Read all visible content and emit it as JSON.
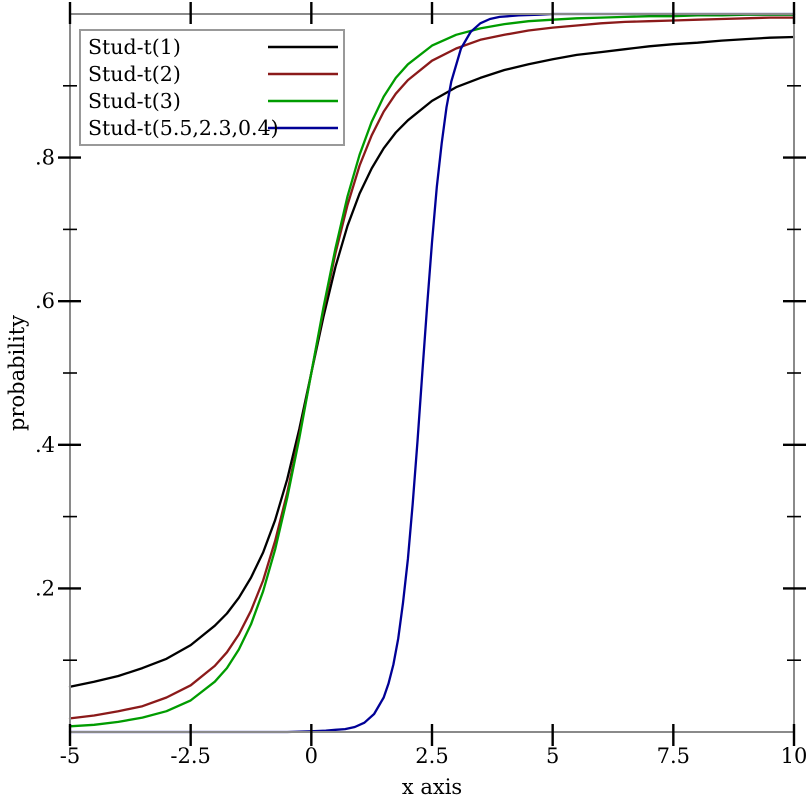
{
  "page": {
    "background": "#ffffff"
  },
  "axes": {
    "x": {
      "label": "x axis",
      "range": [
        -5,
        10
      ],
      "ticks": [
        -5,
        -2.5,
        0,
        2.5,
        5,
        7.5,
        10
      ],
      "tick_labels": [
        "-5",
        "-2.5",
        "0",
        "2.5",
        "5",
        "7.5",
        "10"
      ]
    },
    "y": {
      "label": "probability",
      "range": [
        0,
        1
      ],
      "major_ticks": [
        0.2,
        0.4,
        0.6,
        0.8
      ],
      "tick_labels": [
        ".2",
        ".4",
        ".6",
        ".8"
      ],
      "minor_ticks": [
        0.1,
        0.3,
        0.5,
        0.7,
        0.9
      ]
    }
  },
  "legend": {
    "position": "top-left",
    "entries": [
      "Stud-t(1)",
      "Stud-t(2)",
      "Stud-t(3)",
      "Stud-t(5.5,2.3,0.4)"
    ]
  },
  "colors": {
    "axis_frame": "#8a8a8a",
    "tick": "#000000",
    "text": "#000000",
    "legend_border": "#999999",
    "legend_background": "#ffffff",
    "series_black": "#000000",
    "series_red": "#8b1a1a",
    "series_green": "#009c00",
    "series_blue": "#000096"
  },
  "chart_data": {
    "type": "line",
    "title": "",
    "xlabel": "x axis",
    "ylabel": "probability",
    "xlim": [
      -5,
      10
    ],
    "ylim": [
      0,
      1
    ],
    "grid": false,
    "legend_position": "top-left",
    "x_ticks": [
      -5,
      -2.5,
      0,
      2.5,
      5,
      7.5,
      10
    ],
    "y_ticks": [
      0.2,
      0.4,
      0.6,
      0.8
    ],
    "series": [
      {
        "name": "Stud-t(1)",
        "color": "#000000",
        "points": [
          [
            -5,
            0.063
          ],
          [
            -4.5,
            0.07
          ],
          [
            -4,
            0.078
          ],
          [
            -3.5,
            0.089
          ],
          [
            -3,
            0.102
          ],
          [
            -2.5,
            0.121
          ],
          [
            -2,
            0.148
          ],
          [
            -1.75,
            0.165
          ],
          [
            -1.5,
            0.187
          ],
          [
            -1.25,
            0.215
          ],
          [
            -1,
            0.25
          ],
          [
            -0.75,
            0.295
          ],
          [
            -0.5,
            0.352
          ],
          [
            -0.25,
            0.422
          ],
          [
            0,
            0.5
          ],
          [
            0.25,
            0.578
          ],
          [
            0.5,
            0.648
          ],
          [
            0.75,
            0.705
          ],
          [
            1,
            0.75
          ],
          [
            1.25,
            0.785
          ],
          [
            1.5,
            0.813
          ],
          [
            1.75,
            0.835
          ],
          [
            2,
            0.852
          ],
          [
            2.5,
            0.879
          ],
          [
            3,
            0.898
          ],
          [
            3.5,
            0.911
          ],
          [
            4,
            0.922
          ],
          [
            4.5,
            0.93
          ],
          [
            5,
            0.937
          ],
          [
            5.5,
            0.943
          ],
          [
            6,
            0.947
          ],
          [
            6.5,
            0.951
          ],
          [
            7,
            0.955
          ],
          [
            7.5,
            0.958
          ],
          [
            8,
            0.96
          ],
          [
            8.5,
            0.963
          ],
          [
            9,
            0.965
          ],
          [
            9.5,
            0.967
          ],
          [
            10,
            0.968
          ]
        ]
      },
      {
        "name": "Stud-t(2)",
        "color": "#8b1a1a",
        "points": [
          [
            -5,
            0.019
          ],
          [
            -4.5,
            0.023
          ],
          [
            -4,
            0.029
          ],
          [
            -3.5,
            0.036
          ],
          [
            -3,
            0.048
          ],
          [
            -2.5,
            0.065
          ],
          [
            -2,
            0.092
          ],
          [
            -1.75,
            0.111
          ],
          [
            -1.5,
            0.136
          ],
          [
            -1.25,
            0.169
          ],
          [
            -1,
            0.211
          ],
          [
            -0.75,
            0.266
          ],
          [
            -0.5,
            0.333
          ],
          [
            -0.25,
            0.413
          ],
          [
            0,
            0.5
          ],
          [
            0.25,
            0.587
          ],
          [
            0.5,
            0.667
          ],
          [
            0.75,
            0.734
          ],
          [
            1,
            0.789
          ],
          [
            1.25,
            0.831
          ],
          [
            1.5,
            0.864
          ],
          [
            1.75,
            0.889
          ],
          [
            2,
            0.908
          ],
          [
            2.5,
            0.935
          ],
          [
            3,
            0.952
          ],
          [
            3.5,
            0.964
          ],
          [
            4,
            0.971
          ],
          [
            4.5,
            0.977
          ],
          [
            5,
            0.981
          ],
          [
            5.5,
            0.984
          ],
          [
            6,
            0.987
          ],
          [
            6.5,
            0.989
          ],
          [
            7,
            0.99
          ],
          [
            7.5,
            0.991
          ],
          [
            8,
            0.992
          ],
          [
            8.5,
            0.993
          ],
          [
            9,
            0.994
          ],
          [
            9.5,
            0.995
          ],
          [
            10,
            0.995
          ]
        ]
      },
      {
        "name": "Stud-t(3)",
        "color": "#009c00",
        "points": [
          [
            -5,
            0.008
          ],
          [
            -4.5,
            0.01
          ],
          [
            -4,
            0.014
          ],
          [
            -3.5,
            0.02
          ],
          [
            -3,
            0.029
          ],
          [
            -2.5,
            0.044
          ],
          [
            -2,
            0.07
          ],
          [
            -1.75,
            0.089
          ],
          [
            -1.5,
            0.115
          ],
          [
            -1.25,
            0.15
          ],
          [
            -1,
            0.196
          ],
          [
            -0.75,
            0.254
          ],
          [
            -0.5,
            0.326
          ],
          [
            -0.25,
            0.409
          ],
          [
            0,
            0.5
          ],
          [
            0.25,
            0.591
          ],
          [
            0.5,
            0.674
          ],
          [
            0.75,
            0.746
          ],
          [
            1,
            0.804
          ],
          [
            1.25,
            0.85
          ],
          [
            1.5,
            0.885
          ],
          [
            1.75,
            0.911
          ],
          [
            2,
            0.93
          ],
          [
            2.5,
            0.956
          ],
          [
            3,
            0.971
          ],
          [
            3.5,
            0.98
          ],
          [
            4,
            0.986
          ],
          [
            4.5,
            0.99
          ],
          [
            5,
            0.992
          ],
          [
            5.5,
            0.994
          ],
          [
            6,
            0.995
          ],
          [
            6.5,
            0.996
          ],
          [
            7,
            0.997
          ],
          [
            7.5,
            0.997
          ],
          [
            8,
            0.998
          ],
          [
            8.5,
            0.998
          ],
          [
            9,
            0.999
          ],
          [
            9.5,
            0.999
          ],
          [
            10,
            0.999
          ]
        ]
      },
      {
        "name": "Stud-t(5.5,2.3,0.4)",
        "color": "#000096",
        "points": [
          [
            -5,
            0.0
          ],
          [
            -4,
            0.0
          ],
          [
            -3,
            0.0
          ],
          [
            -2,
            0.0
          ],
          [
            -1,
            0.0
          ],
          [
            -0.5,
            0.0
          ],
          [
            0,
            0.001
          ],
          [
            0.3,
            0.002
          ],
          [
            0.5,
            0.003
          ],
          [
            0.7,
            0.004
          ],
          [
            0.9,
            0.007
          ],
          [
            1.1,
            0.013
          ],
          [
            1.3,
            0.025
          ],
          [
            1.5,
            0.048
          ],
          [
            1.6,
            0.068
          ],
          [
            1.7,
            0.094
          ],
          [
            1.8,
            0.13
          ],
          [
            1.9,
            0.18
          ],
          [
            2.0,
            0.241
          ],
          [
            2.1,
            0.318
          ],
          [
            2.2,
            0.405
          ],
          [
            2.3,
            0.5
          ],
          [
            2.4,
            0.595
          ],
          [
            2.5,
            0.682
          ],
          [
            2.6,
            0.759
          ],
          [
            2.7,
            0.82
          ],
          [
            2.8,
            0.87
          ],
          [
            2.9,
            0.906
          ],
          [
            3.1,
            0.952
          ],
          [
            3.3,
            0.975
          ],
          [
            3.5,
            0.987
          ],
          [
            3.7,
            0.993
          ],
          [
            3.9,
            0.996
          ],
          [
            4.3,
            0.998
          ],
          [
            4.7,
            0.999
          ],
          [
            5,
            1.0
          ],
          [
            6,
            1.0
          ],
          [
            7,
            1.0
          ],
          [
            8,
            1.0
          ],
          [
            9,
            1.0
          ],
          [
            10,
            1.0
          ]
        ]
      }
    ]
  }
}
